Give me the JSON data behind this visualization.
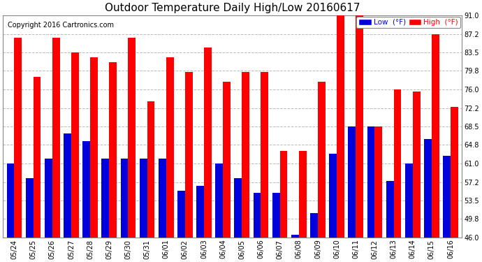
{
  "title": "Outdoor Temperature Daily High/Low 20160617",
  "copyright": "Copyright 2016 Cartronics.com",
  "legend_low": "Low  (°F)",
  "legend_high": "High  (°F)",
  "dates": [
    "05/24",
    "05/25",
    "05/26",
    "05/27",
    "05/28",
    "05/29",
    "05/30",
    "05/31",
    "06/01",
    "06/02",
    "06/03",
    "06/04",
    "06/05",
    "06/06",
    "06/07",
    "06/08",
    "06/09",
    "06/10",
    "06/11",
    "06/12",
    "06/13",
    "06/14",
    "06/15",
    "06/16"
  ],
  "highs": [
    86.5,
    78.5,
    86.5,
    83.5,
    82.5,
    81.5,
    86.5,
    73.5,
    82.5,
    79.5,
    84.5,
    77.5,
    79.5,
    79.5,
    63.5,
    63.5,
    77.5,
    91.0,
    91.0,
    68.5,
    76.0,
    75.5,
    87.2,
    72.5
  ],
  "lows": [
    61.0,
    58.0,
    62.0,
    67.0,
    65.5,
    62.0,
    62.0,
    62.0,
    62.0,
    55.5,
    56.5,
    61.0,
    58.0,
    55.0,
    55.0,
    46.5,
    51.0,
    63.0,
    68.5,
    68.5,
    57.5,
    61.0,
    66.0,
    62.5
  ],
  "ymin": 46.0,
  "ymax": 91.0,
  "yticks": [
    46.0,
    49.8,
    53.5,
    57.2,
    61.0,
    64.8,
    68.5,
    72.2,
    76.0,
    79.8,
    83.5,
    87.2,
    91.0
  ],
  "bar_width": 0.4,
  "low_color": "#0000dd",
  "high_color": "#ff0000",
  "grid_color": "#bbbbbb",
  "bg_color": "#ffffff",
  "title_fontsize": 11,
  "copyright_fontsize": 7,
  "tick_fontsize": 7,
  "legend_fontsize": 7.5
}
